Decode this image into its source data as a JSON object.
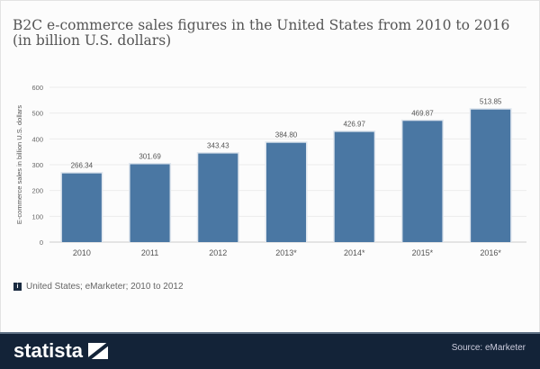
{
  "chart_data": {
    "type": "bar",
    "title": "B2C e-commerce sales figures in the United States from 2010 to 2016 (in billion U.S. dollars)",
    "ylabel": "E-commerce sales in billion U.S. dollars",
    "xlabel": "",
    "categories": [
      "2010",
      "2011",
      "2012",
      "2013*",
      "2014*",
      "2015*",
      "2016*"
    ],
    "values": [
      266.34,
      301.69,
      343.43,
      384.8,
      426.97,
      469.87,
      513.85
    ],
    "value_labels": [
      "266.34",
      "301.69",
      "343.43",
      "384.80",
      "426.97",
      "469.87",
      "513.85"
    ],
    "ylim": [
      0,
      600
    ],
    "yticks": [
      "0",
      "100",
      "200",
      "300",
      "400",
      "500",
      "600"
    ],
    "grid": true,
    "bar_color": "#4a77a3"
  },
  "note": {
    "icon": "info-icon",
    "text": "United States; eMarketer; 2010 to 2012"
  },
  "footer": {
    "logo": "statista",
    "source": "Source: eMarketer",
    "background": "#132338"
  }
}
